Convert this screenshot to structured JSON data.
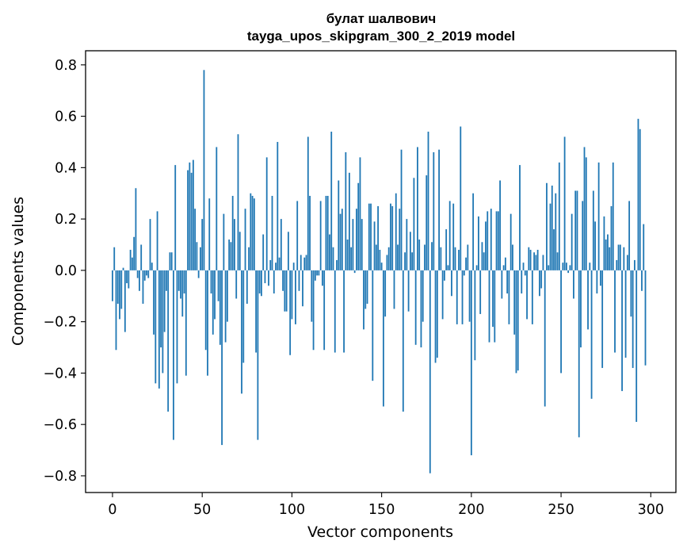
{
  "chart_data": {
    "type": "bar",
    "title": "булат шалвович",
    "subtitle": "tayga_upos_skipgram_300_2_2019 model",
    "xlabel": "Vector components",
    "ylabel": "Components values",
    "xlim": [
      -15,
      314
    ],
    "ylim": [
      -0.865,
      0.855
    ],
    "xticks": [
      0,
      50,
      100,
      150,
      200,
      250,
      300
    ],
    "yticks": [
      -0.8,
      -0.6,
      -0.4,
      -0.2,
      0.0,
      0.2,
      0.4,
      0.6,
      0.8
    ],
    "ytick_labels": [
      "−0.8",
      "−0.6",
      "−0.4",
      "−0.2",
      "0.0",
      "0.2",
      "0.4",
      "0.6",
      "0.8"
    ],
    "bar_color": "#1f77b4",
    "grid": false,
    "legend": "none",
    "values": [
      -0.12,
      0.09,
      -0.31,
      -0.13,
      -0.19,
      -0.15,
      0.01,
      -0.24,
      -0.05,
      -0.07,
      0.08,
      0.05,
      0.13,
      0.32,
      -0.03,
      -0.08,
      0.1,
      -0.13,
      -0.04,
      -0.02,
      -0.03,
      0.2,
      0.03,
      -0.25,
      -0.44,
      0.23,
      -0.46,
      -0.3,
      -0.4,
      -0.24,
      -0.08,
      -0.55,
      0.07,
      0.07,
      -0.66,
      0.41,
      -0.44,
      -0.08,
      -0.11,
      -0.18,
      -0.09,
      -0.41,
      0.39,
      0.42,
      0.38,
      0.43,
      0.24,
      0.11,
      -0.03,
      0.09,
      0.2,
      0.78,
      -0.31,
      -0.41,
      0.28,
      -0.09,
      -0.25,
      -0.19,
      0.48,
      -0.12,
      -0.29,
      -0.68,
      0.22,
      -0.28,
      -0.2,
      0.12,
      0.11,
      0.29,
      0.2,
      -0.11,
      0.53,
      0.15,
      -0.48,
      -0.36,
      0.24,
      -0.13,
      0.09,
      0.3,
      0.29,
      0.28,
      -0.32,
      -0.66,
      -0.09,
      -0.1,
      0.14,
      -0.05,
      0.44,
      -0.06,
      0.04,
      0.29,
      -0.09,
      0.03,
      0.5,
      0.05,
      0.2,
      -0.08,
      -0.16,
      -0.16,
      0.15,
      -0.33,
      -0.19,
      0.03,
      -0.21,
      0.27,
      -0.08,
      0.06,
      -0.14,
      0.05,
      0.06,
      0.52,
      0.29,
      -0.2,
      -0.31,
      -0.04,
      -0.02,
      -0.02,
      0.27,
      -0.06,
      -0.31,
      0.29,
      0.29,
      0.14,
      0.54,
      0.09,
      -0.32,
      0.04,
      0.35,
      0.22,
      0.24,
      -0.32,
      0.46,
      0.12,
      0.38,
      0.09,
      0.2,
      -0.01,
      0.24,
      0.34,
      0.44,
      0.2,
      -0.23,
      -0.15,
      -0.13,
      0.26,
      0.26,
      -0.43,
      0.19,
      0.1,
      0.25,
      0.08,
      0.03,
      -0.53,
      -0.18,
      0.06,
      0.09,
      0.26,
      0.25,
      -0.15,
      0.3,
      0.1,
      0.24,
      0.47,
      -0.55,
      0.07,
      0.2,
      -0.16,
      0.15,
      0.07,
      0.36,
      -0.29,
      0.48,
      0.12,
      -0.3,
      -0.2,
      0.1,
      0.37,
      0.54,
      -0.79,
      0.11,
      0.46,
      -0.36,
      -0.34,
      0.47,
      0.09,
      -0.19,
      -0.04,
      0.16,
      0.02,
      0.27,
      -0.1,
      0.26,
      0.09,
      -0.21,
      0.08,
      0.56,
      -0.21,
      -0.02,
      0.05,
      0.1,
      -0.2,
      -0.72,
      0.3,
      -0.35,
      0.02,
      0.21,
      -0.17,
      0.11,
      0.07,
      0.19,
      0.23,
      -0.28,
      0.24,
      -0.22,
      -0.28,
      0.23,
      0.23,
      0.35,
      -0.11,
      0.02,
      0.05,
      -0.09,
      -0.21,
      0.22,
      0.1,
      -0.25,
      -0.4,
      -0.39,
      0.41,
      -0.09,
      0.03,
      -0.02,
      -0.19,
      0.09,
      0.08,
      -0.21,
      0.07,
      0.06,
      0.08,
      -0.1,
      -0.07,
      0.06,
      -0.53,
      0.34,
      0.02,
      0.26,
      0.33,
      0.16,
      0.3,
      0.07,
      0.42,
      -0.4,
      0.03,
      0.52,
      0.03,
      -0.01,
      0.02,
      0.22,
      -0.11,
      0.31,
      0.31,
      -0.65,
      -0.3,
      0.27,
      0.48,
      0.44,
      -0.23,
      0.03,
      -0.5,
      0.31,
      0.19,
      -0.09,
      0.42,
      -0.06,
      -0.38,
      0.21,
      0.12,
      0.14,
      0.09,
      0.25,
      0.42,
      -0.32,
      0.04,
      0.1,
      0.1,
      -0.47,
      0.09,
      -0.34,
      0.06,
      0.27,
      -0.18,
      -0.38,
      0.04,
      -0.59,
      0.59,
      0.55,
      -0.08,
      0.18,
      -0.37
    ]
  }
}
